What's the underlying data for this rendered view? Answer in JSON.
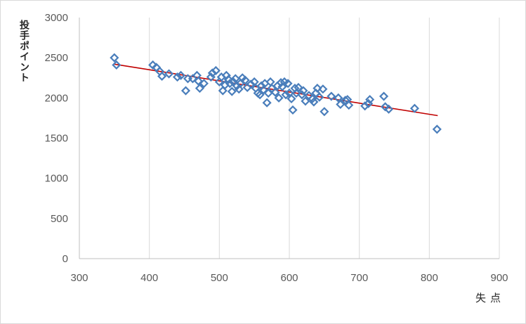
{
  "chart_data": {
    "type": "scatter",
    "xlabel": "失点",
    "ylabel": "投手ポイント",
    "xlim": [
      300,
      900
    ],
    "ylim": [
      0,
      3000
    ],
    "x_ticks": [
      300,
      400,
      500,
      600,
      700,
      800,
      900
    ],
    "y_ticks": [
      0,
      500,
      1000,
      1500,
      2000,
      2500,
      3000
    ],
    "grid": {
      "vertical": true,
      "horizontal": false
    },
    "marker": "diamond-open",
    "colors": {
      "marker": "#4a7ebb",
      "trendline": "#c00000",
      "grid": "#d9d9d9",
      "axis": "#bfbfbf"
    },
    "series": [
      {
        "points": [
          [
            350,
            2500
          ],
          [
            353,
            2410
          ],
          [
            405,
            2410
          ],
          [
            410,
            2380
          ],
          [
            415,
            2330
          ],
          [
            418,
            2270
          ],
          [
            428,
            2300
          ],
          [
            440,
            2260
          ],
          [
            445,
            2280
          ],
          [
            452,
            2090
          ],
          [
            455,
            2240
          ],
          [
            462,
            2240
          ],
          [
            468,
            2280
          ],
          [
            470,
            2210
          ],
          [
            472,
            2120
          ],
          [
            478,
            2180
          ],
          [
            488,
            2260
          ],
          [
            490,
            2310
          ],
          [
            495,
            2340
          ],
          [
            500,
            2200
          ],
          [
            503,
            2260
          ],
          [
            505,
            2090
          ],
          [
            508,
            2160
          ],
          [
            510,
            2280
          ],
          [
            513,
            2230
          ],
          [
            515,
            2180
          ],
          [
            518,
            2080
          ],
          [
            520,
            2200
          ],
          [
            523,
            2240
          ],
          [
            525,
            2150
          ],
          [
            528,
            2110
          ],
          [
            530,
            2180
          ],
          [
            533,
            2250
          ],
          [
            537,
            2220
          ],
          [
            540,
            2130
          ],
          [
            545,
            2170
          ],
          [
            550,
            2200
          ],
          [
            552,
            2120
          ],
          [
            555,
            2060
          ],
          [
            558,
            2040
          ],
          [
            560,
            2150
          ],
          [
            563,
            2100
          ],
          [
            565,
            2180
          ],
          [
            568,
            1940
          ],
          [
            570,
            2060
          ],
          [
            573,
            2200
          ],
          [
            575,
            2120
          ],
          [
            580,
            2070
          ],
          [
            583,
            2150
          ],
          [
            585,
            2000
          ],
          [
            588,
            2190
          ],
          [
            590,
            2140
          ],
          [
            593,
            2200
          ],
          [
            595,
            2040
          ],
          [
            598,
            2180
          ],
          [
            600,
            2060
          ],
          [
            603,
            1990
          ],
          [
            605,
            1850
          ],
          [
            608,
            2120
          ],
          [
            610,
            2060
          ],
          [
            613,
            2130
          ],
          [
            618,
            2040
          ],
          [
            620,
            2090
          ],
          [
            623,
            1960
          ],
          [
            628,
            2030
          ],
          [
            633,
            1990
          ],
          [
            635,
            1950
          ],
          [
            638,
            2060
          ],
          [
            640,
            2120
          ],
          [
            643,
            2010
          ],
          [
            648,
            2110
          ],
          [
            650,
            1830
          ],
          [
            660,
            2020
          ],
          [
            670,
            2000
          ],
          [
            673,
            1920
          ],
          [
            680,
            1970
          ],
          [
            683,
            1980
          ],
          [
            685,
            1910
          ],
          [
            708,
            1900
          ],
          [
            713,
            1930
          ],
          [
            715,
            1980
          ],
          [
            735,
            2020
          ],
          [
            737,
            1890
          ],
          [
            742,
            1860
          ],
          [
            779,
            1870
          ],
          [
            811,
            1610
          ]
        ]
      }
    ],
    "trendline": {
      "type": "linear",
      "x": [
        350,
        812
      ],
      "y": [
        2420,
        1780
      ]
    }
  }
}
